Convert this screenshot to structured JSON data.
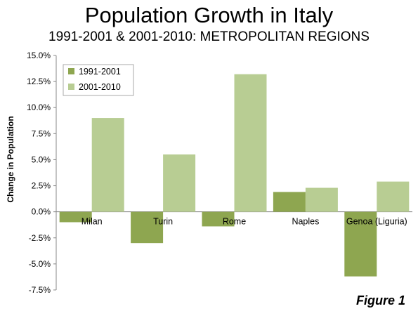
{
  "title": "Population Growth in Italy",
  "subtitle": "1991-2001 & 2001-2010: METROPOLITAN REGIONS",
  "figure_label": "Figure 1",
  "colors": {
    "series_1991": "#8ea650",
    "series_2001": "#b8cd93",
    "grid": "#888888"
  },
  "chart_data": {
    "type": "bar",
    "title": "Population Growth in Italy",
    "subtitle": "1991-2001 & 2001-2010: METROPOLITAN REGIONS",
    "categories": [
      "Milan",
      "Turin",
      "Rome",
      "Naples",
      "Genoa (Liguria)"
    ],
    "series": [
      {
        "name": "1991-2001",
        "values": [
          -1.0,
          -3.0,
          -1.4,
          1.9,
          -6.2
        ]
      },
      {
        "name": "2001-2010",
        "values": [
          9.0,
          5.5,
          13.2,
          2.3,
          2.9
        ]
      }
    ],
    "xlabel": "",
    "ylabel": "Change in Population",
    "ylim": [
      -7.5,
      15.0
    ],
    "yticks": [
      15.0,
      12.5,
      10.0,
      7.5,
      5.0,
      2.5,
      0.0,
      -2.5,
      -5.0,
      -7.5
    ],
    "ytick_labels": [
      "15.0%",
      "12.5%",
      "10.0%",
      "7.5%",
      "5.0%",
      "2.5%",
      "0.0%",
      "-2.5%",
      "-5.0%",
      "-7.5%"
    ],
    "grid": false,
    "legend_position": "top-left"
  }
}
